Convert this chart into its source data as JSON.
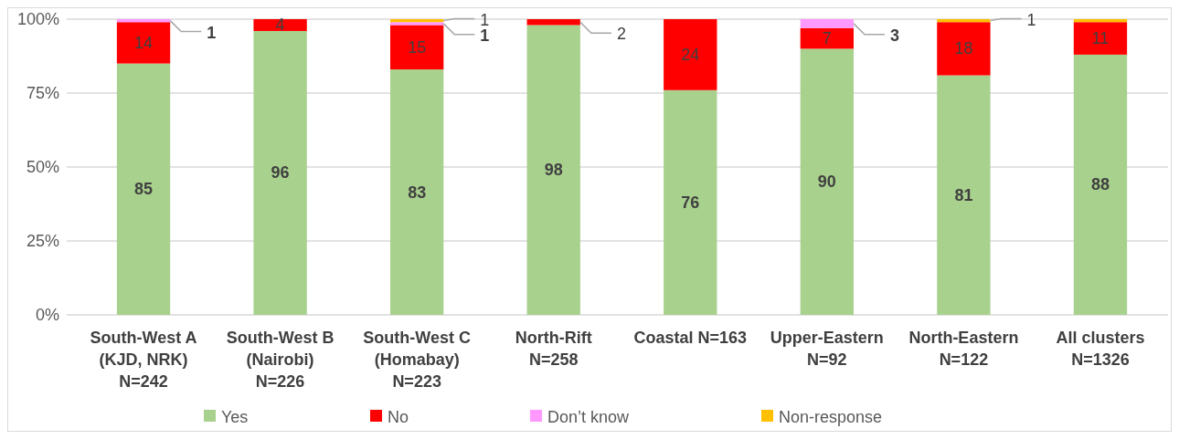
{
  "chart_data": {
    "type": "bar",
    "stacked": true,
    "categories": [
      "South-West A\n(KJD, NRK)\nN=242",
      "South-West B\n(Nairobi)\nN=226",
      "South-West C\n(Homabay)\nN=223",
      "North-Rift\nN=258",
      "Coastal N=163",
      "Upper-Eastern\nN=92",
      "North-Eastern\nN=122",
      "All clusters\nN=1326"
    ],
    "series": [
      {
        "name": "Yes",
        "color": "#a9d18e",
        "values": [
          85,
          96,
          83,
          98,
          76,
          90,
          81,
          88
        ],
        "value_labels": [
          "85",
          "96",
          "83",
          "98",
          "76",
          "90",
          "81",
          "88"
        ]
      },
      {
        "name": "No",
        "color": "#ff0000",
        "values": [
          14,
          4,
          15,
          2,
          24,
          7,
          18,
          11
        ],
        "value_labels": [
          "14",
          "4",
          "15",
          "2",
          "24",
          "7",
          "18",
          "11"
        ]
      },
      {
        "name": "Don’t know",
        "color": "#ff99ff",
        "values": [
          1,
          0,
          1,
          0,
          0,
          3,
          0,
          0
        ],
        "value_labels": [
          "1",
          null,
          "1",
          null,
          null,
          "3",
          null,
          null
        ]
      },
      {
        "name": "Non-response",
        "color": "#ffc000",
        "values": [
          0,
          0,
          1,
          0,
          0,
          0,
          1,
          1
        ],
        "value_labels": [
          null,
          null,
          "1",
          null,
          null,
          null,
          "1",
          null
        ]
      }
    ],
    "ylim": [
      0,
      100
    ],
    "yticks": [
      {
        "value": 0,
        "label": "0%"
      },
      {
        "value": 25,
        "label": "25%"
      },
      {
        "value": 50,
        "label": "50%"
      },
      {
        "value": 75,
        "label": "75%"
      },
      {
        "value": 100,
        "label": "100%"
      }
    ],
    "grid": "y",
    "legend": "bottom"
  }
}
